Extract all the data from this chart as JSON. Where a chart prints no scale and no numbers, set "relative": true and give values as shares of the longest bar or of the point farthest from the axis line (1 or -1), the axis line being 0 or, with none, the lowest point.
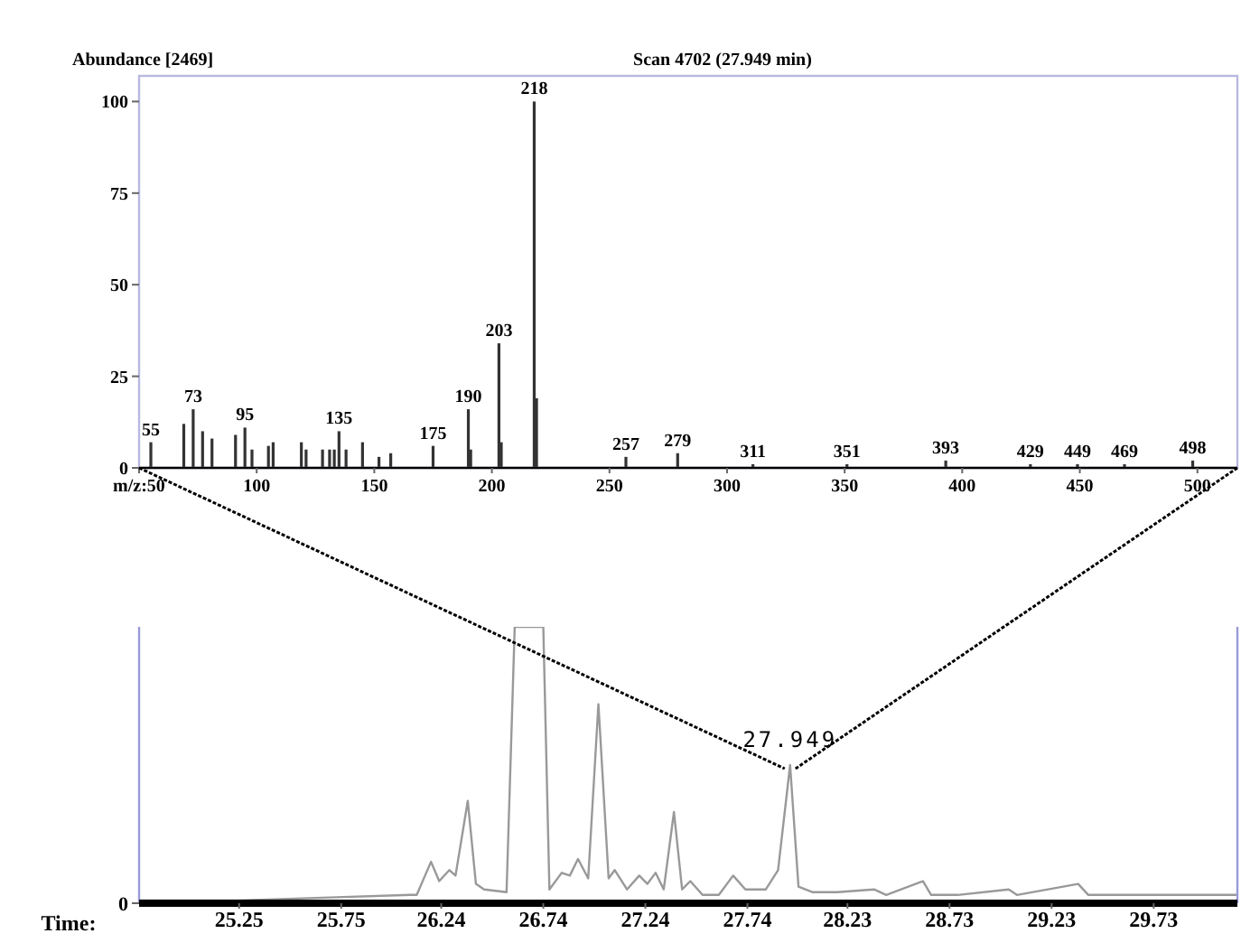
{
  "chart_data": [
    {
      "type": "bar",
      "title": "Scan 4702 (27.949 min)",
      "ylabel": "Abundance [2469]",
      "xlim": [
        50,
        517
      ],
      "ylim": [
        0,
        107
      ],
      "xticks": [
        {
          "value": 50,
          "label": "m/z:50"
        },
        100,
        150,
        200,
        250,
        300,
        350,
        400,
        450,
        500
      ],
      "yticks": [
        0,
        25,
        50,
        75,
        100
      ],
      "x": [
        55,
        69,
        73,
        77,
        81,
        91,
        95,
        98,
        105,
        107,
        119,
        121,
        128,
        131,
        133,
        135,
        138,
        145,
        152,
        157,
        175,
        190,
        191,
        203,
        204,
        218,
        219,
        257,
        279,
        311,
        351,
        393,
        429,
        449,
        469,
        498
      ],
      "values": [
        7,
        12,
        16,
        10,
        8,
        9,
        11,
        5,
        6,
        7,
        7,
        5,
        5,
        5,
        5,
        10,
        5,
        7,
        3,
        4,
        6,
        16,
        5,
        34,
        7,
        100,
        19,
        3,
        4,
        1,
        1,
        2,
        1,
        1,
        1,
        2
      ],
      "color": "#333333",
      "annotations": [
        {
          "text": "55",
          "x": 55,
          "y": 7
        },
        {
          "text": "73",
          "x": 73,
          "y": 16
        },
        {
          "text": "95",
          "x": 95,
          "y": 11
        },
        {
          "text": "135",
          "x": 135,
          "y": 10
        },
        {
          "text": "175",
          "x": 175,
          "y": 6
        },
        {
          "text": "190",
          "x": 190,
          "y": 16
        },
        {
          "text": "203",
          "x": 203,
          "y": 34
        },
        {
          "text": "218",
          "x": 218,
          "y": 100
        },
        {
          "text": "257",
          "x": 257,
          "y": 3
        },
        {
          "text": "279",
          "x": 279,
          "y": 4
        },
        {
          "text": "311",
          "x": 311,
          "y": 1
        },
        {
          "text": "351",
          "x": 351,
          "y": 1
        },
        {
          "text": "393",
          "x": 393,
          "y": 2
        },
        {
          "text": "429",
          "x": 429,
          "y": 1
        },
        {
          "text": "449",
          "x": 449,
          "y": 1
        },
        {
          "text": "469",
          "x": 469,
          "y": 1
        },
        {
          "text": "498",
          "x": 498,
          "y": 2
        }
      ]
    },
    {
      "type": "line",
      "relative": true,
      "xlabel": "Time:",
      "xlim": [
        24.76,
        30.14
      ],
      "xticks": [
        25.25,
        25.75,
        26.24,
        26.74,
        27.24,
        27.74,
        28.23,
        28.73,
        29.23,
        29.73
      ],
      "line_style": "solid",
      "color": "#999999",
      "x": [
        24.76,
        25.25,
        25.66,
        26.09,
        26.12,
        26.19,
        26.23,
        26.28,
        26.31,
        26.37,
        26.41,
        26.45,
        26.56,
        26.6,
        26.74,
        26.77,
        26.83,
        26.87,
        26.91,
        26.96,
        27.01,
        27.06,
        27.09,
        27.15,
        27.21,
        27.25,
        27.29,
        27.33,
        27.38,
        27.42,
        27.46,
        27.52,
        27.6,
        27.67,
        27.73,
        27.83,
        27.89,
        27.949,
        27.99,
        28.06,
        28.18,
        28.36,
        28.42,
        28.6,
        28.64,
        28.77,
        29.02,
        29.06,
        29.36,
        29.41,
        29.66,
        29.95,
        30.14
      ],
      "values": [
        0.01,
        0.01,
        0.02,
        0.03,
        0.03,
        0.15,
        0.08,
        0.12,
        0.1,
        0.37,
        0.07,
        0.05,
        0.04,
        1,
        1,
        0.05,
        0.11,
        0.1,
        0.16,
        0.09,
        0.72,
        0.09,
        0.12,
        0.05,
        0.1,
        0.07,
        0.11,
        0.05,
        0.33,
        0.05,
        0.08,
        0.03,
        0.03,
        0.1,
        0.05,
        0.05,
        0.12,
        0.5,
        0.06,
        0.04,
        0.04,
        0.05,
        0.03,
        0.08,
        0.03,
        0.03,
        0.05,
        0.03,
        0.07,
        0.03,
        0.03,
        0.03,
        0.03
      ],
      "annotations": [
        {
          "text": "27.949",
          "x": 27.949,
          "y": 0.5
        },
        "0"
      ]
    }
  ]
}
